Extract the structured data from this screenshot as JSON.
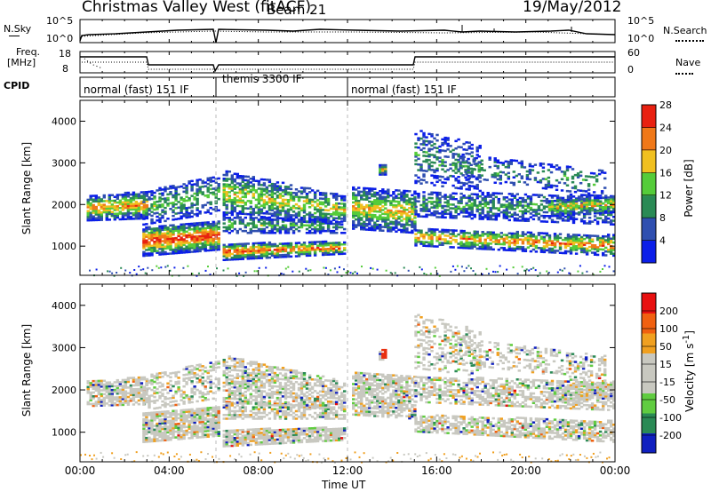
{
  "header": {
    "title": "Christmas Valley West (fitACF)",
    "beam": "Beam 21",
    "date": "19/May/2012"
  },
  "status_panels": {
    "nsky_label": "N.Sky",
    "nsky_tick_top": "10^5",
    "nsky_tick_bottom": "10^0",
    "nsearch_label": "N.Search",
    "freq_label_1": "Freq.",
    "freq_label_2": "[MHz]",
    "freq_tick_top": "18",
    "freq_tick_bottom": "8",
    "nave_tick_top": "60",
    "nave_tick_bottom": "0",
    "nave_label": "Nave",
    "cpid_label": "CPID",
    "cpid_segments": [
      {
        "label": "normal (fast) 151 IF",
        "start_h": 0,
        "end_h": 6.3
      },
      {
        "label": "themis 3300 IF",
        "start_h": 6.3,
        "end_h": 12.0
      },
      {
        "label": "normal (fast) 151 IF",
        "start_h": 12.0,
        "end_h": 24
      }
    ]
  },
  "chart_data": [
    {
      "type": "heatmap",
      "quantity": "Power",
      "ylabel": "Slant Range [km]",
      "ylim": [
        300,
        4500
      ],
      "xlim": [
        0,
        24
      ],
      "yticks": [
        "1000",
        "2000",
        "3000",
        "4000"
      ],
      "colorbar": {
        "label": "Power [dB]",
        "ticks": [
          "4",
          "8",
          "12",
          "16",
          "20",
          "24",
          "28"
        ],
        "colors": [
          "#0b1ee8",
          "#2f4fb0",
          "#2a8a55",
          "#55cc3a",
          "#f0c020",
          "#f07818",
          "#e82010"
        ]
      }
    },
    {
      "type": "heatmap",
      "quantity": "Velocity",
      "ylabel": "Slant Range [km]",
      "ylim": [
        300,
        4500
      ],
      "xlim": [
        0,
        24
      ],
      "yticks": [
        "1000",
        "2000",
        "3000",
        "4000"
      ],
      "colorbar": {
        "label": "Velocity [m s^-1]",
        "ticks": [
          "200",
          "100",
          "50",
          "15",
          "-15",
          "-50",
          "-100",
          "-200"
        ],
        "colors": [
          "#1020c0",
          "#2a8a55",
          "#60cc40",
          "#c8c8c0",
          "#c8c8c0",
          "#f0a020",
          "#f06010",
          "#e81010"
        ]
      },
      "xlabel": "Time UT",
      "xticks": [
        "00:00",
        "04:00",
        "08:00",
        "12:00",
        "16:00",
        "20:00",
        "00:00"
      ]
    }
  ]
}
